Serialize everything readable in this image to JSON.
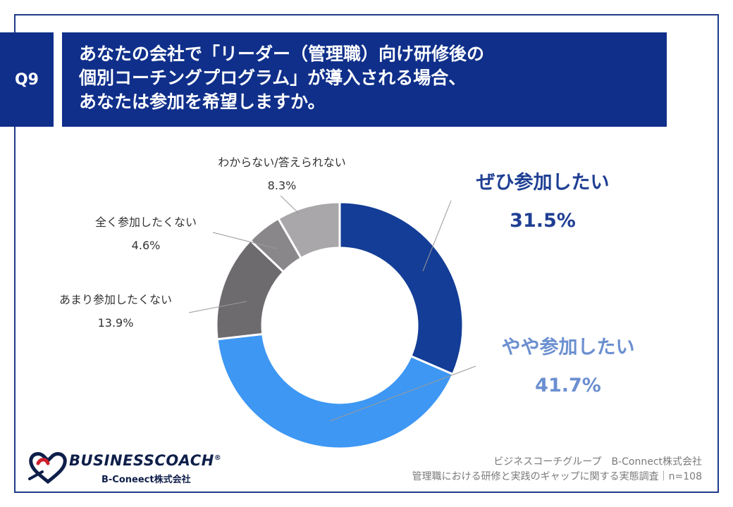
{
  "question": {
    "number": "Q9",
    "lines": [
      "あなたの会社で「リーダー（管理職）向け研修後の",
      "個別コーチングプログラム」が導入される場合、",
      "あなたは参加を希望しますか。"
    ]
  },
  "chart_data": {
    "type": "pie",
    "variant": "donut",
    "slices": [
      {
        "label": "ぜひ参加したい",
        "value": 31.5,
        "value_label": "31.5%",
        "color": "#133d96"
      },
      {
        "label": "やや参加したい",
        "value": 41.7,
        "value_label": "41.7%",
        "color": "#3d97f3"
      },
      {
        "label": "あまり参加したくない",
        "value": 13.9,
        "value_label": "13.9%",
        "color": "#6e6b6e"
      },
      {
        "label": "全く参加したくない",
        "value": 4.6,
        "value_label": "4.6%",
        "color": "#8a878b"
      },
      {
        "label": "わからない/答えられない",
        "value": 8.3,
        "value_label": "8.3%",
        "color": "#aaa7ab"
      }
    ],
    "label_colors": {
      "featured_1": "#1f3f93",
      "featured_2": "#6b8fd0",
      "minor": "#333333"
    }
  },
  "logo": {
    "name": "BUSINESSCOACH",
    "registered": "®",
    "subtitle": "B-Coneect株式会社"
  },
  "source": {
    "line1": "ビジネスコーチグループ　B-Connect株式会社",
    "line2": "管理職における研修と実践のギャップに関する実態調査｜n=108"
  }
}
